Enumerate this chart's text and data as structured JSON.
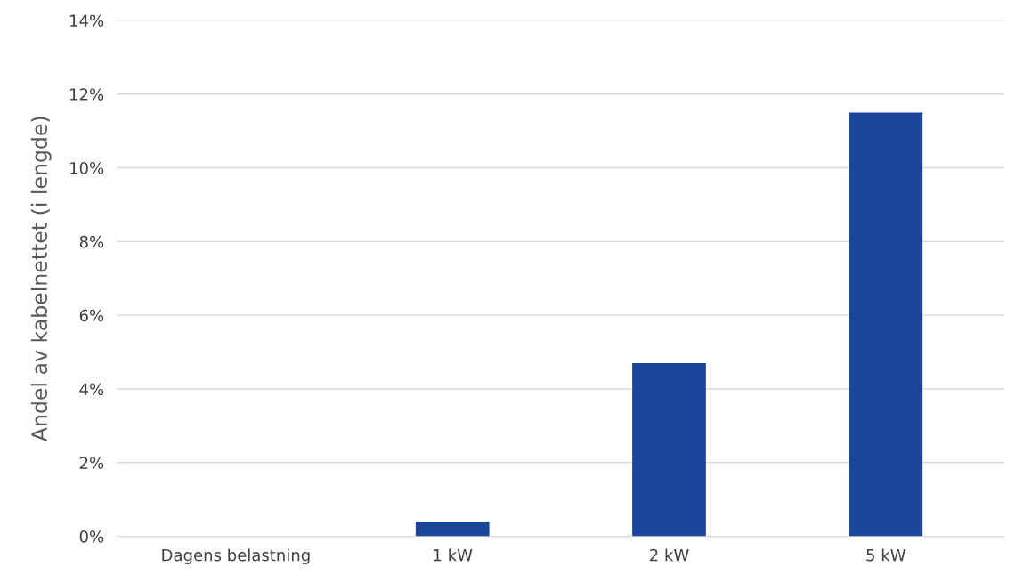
{
  "chart_data": {
    "type": "bar",
    "ylabel": "Andel av kabelnettet (i lengde)",
    "categories": [
      "Dagens belastning",
      "1 kW",
      "2 kW",
      "5 kW"
    ],
    "values": [
      0,
      0.4,
      4.7,
      11.5
    ],
    "color": "#1a4599",
    "ylim": [
      0,
      14
    ],
    "yticks": [
      {
        "value": 0,
        "label": "0%"
      },
      {
        "value": 2,
        "label": "2%"
      },
      {
        "value": 4,
        "label": "4%"
      },
      {
        "value": 6,
        "label": "6%"
      },
      {
        "value": 8,
        "label": "8%"
      },
      {
        "value": 10,
        "label": "10%"
      },
      {
        "value": 12,
        "label": "12%"
      },
      {
        "value": 14,
        "label": "14%"
      }
    ],
    "grid": "y"
  }
}
